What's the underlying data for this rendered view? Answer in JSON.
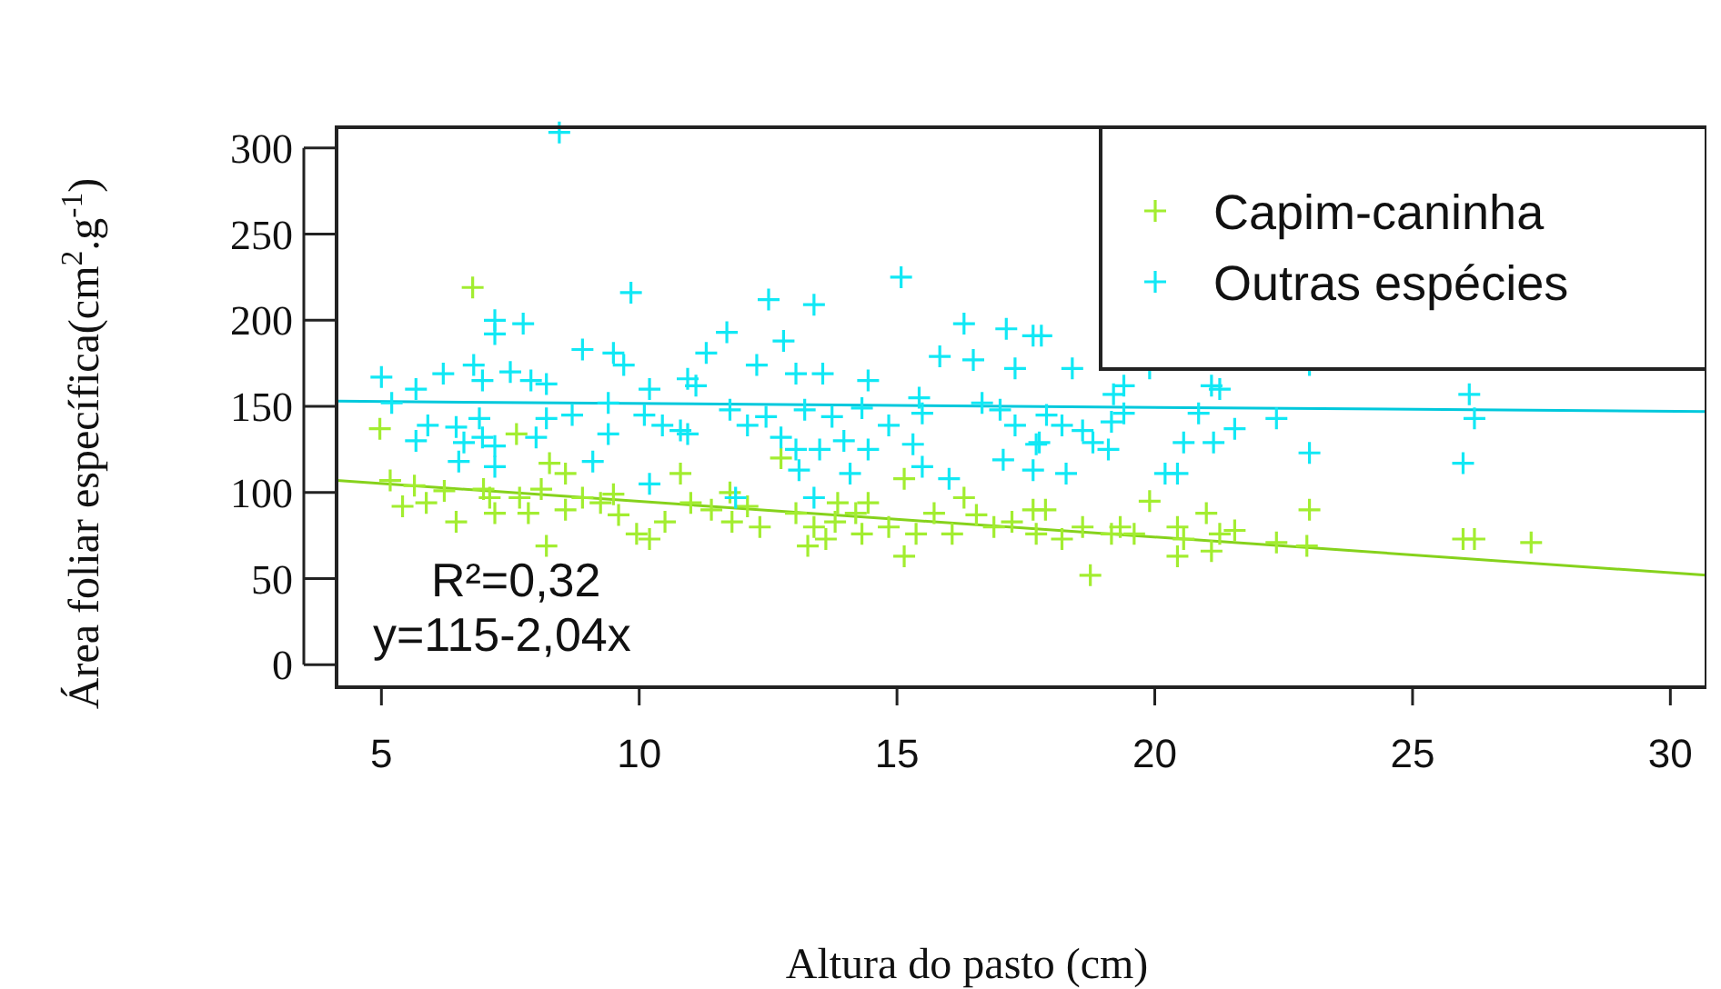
{
  "chart_data": {
    "type": "scatter",
    "xlabel": "Altura do pasto (cm)",
    "ylabel": "Área foliar específica(cm$^{2}$.g$^{-1}$)",
    "xlim": [
      4.13,
      30.7
    ],
    "xticks": [
      5,
      10,
      15,
      20,
      25,
      30
    ],
    "ylim": [
      -13,
      312
    ],
    "yticks": [
      0,
      50,
      100,
      150,
      200,
      250,
      300
    ],
    "grid": false,
    "legend": "top right",
    "marker": "cross",
    "annotations": [
      "R²=0,32",
      "y=115-2,04x"
    ],
    "series": [
      {
        "name": "Capim-caninha",
        "color": "#a2ed30",
        "x": [
          6.77,
          4.97,
          7.62,
          8.26,
          5.17,
          5.64,
          6.22,
          5.41,
          5.87,
          6.98,
          7.1,
          7.2,
          6.45,
          7.68,
          7.85,
          8.1,
          8.57,
          8.57,
          8.9,
          9.25,
          9.5,
          9.6,
          8.2,
          9.95,
          10.2,
          10.5,
          10.8,
          11.0,
          12.75,
          15.14,
          11.4,
          11.76,
          12.1,
          12.34,
          11.8,
          13.04,
          13.39,
          13.62,
          13.8,
          14.2,
          14.32,
          14.44,
          13.27,
          14.84,
          15.14,
          15.37,
          15.72,
          16.07,
          16.3,
          16.54,
          16.88,
          17.23,
          17.64,
          17.7,
          13.85,
          17.88,
          19.9,
          18.2,
          18.6,
          19.16,
          19.33,
          19.6,
          20.44,
          20.56,
          21.0,
          21.1,
          21.26,
          21.55,
          22.36,
          23.0,
          22.95,
          18.75,
          20.44,
          25.98,
          26.2,
          27.3
        ],
        "values": [
          219,
          137,
          134,
          117,
          107,
          104,
          101,
          92,
          94,
          102,
          97,
          88,
          83,
          97,
          88,
          102,
          111,
          90,
          97,
          94,
          99,
          87,
          69,
          76,
          73,
          83,
          111,
          94,
          120,
          108,
          90,
          100,
          92,
          80,
          83,
          88,
          80,
          73,
          83,
          88,
          76,
          94,
          69,
          80,
          63,
          76,
          88,
          76,
          97,
          87,
          80,
          83,
          90,
          76,
          94,
          90,
          95,
          73,
          80,
          76,
          80,
          76,
          80,
          73,
          88,
          66,
          76,
          78,
          71,
          90,
          69,
          52,
          63,
          73,
          73,
          71
        ]
      },
      {
        "name": "Outras espécies",
        "color": "#11e8f5",
        "x": [
          8.45,
          9.84,
          7.2,
          7.75,
          7.2,
          5.0,
          5.67,
          6.2,
          6.79,
          6.96,
          7.5,
          7.9,
          8.2,
          8.9,
          9.5,
          9.7,
          10.2,
          11.1,
          5.2,
          5.9,
          5.67,
          6.45,
          6.6,
          6.96,
          7.2,
          6.5,
          6.9,
          8.2,
          8.0,
          8.7,
          9.4,
          9.4,
          9.1,
          10.1,
          10.45,
          10.8,
          10.2,
          7.2,
          15.08,
          12.51,
          13.39,
          11.7,
          12.8,
          11.3,
          12.28,
          13.04,
          13.56,
          14.44,
          16.3,
          17.12,
          17.64,
          15.83,
          16.48,
          17.29,
          10.94,
          11.76,
          12.46,
          13.21,
          13.74,
          14.32,
          12.1,
          12.75,
          13.04,
          13.5,
          13.97,
          14.44,
          14.84,
          15.43,
          15.49,
          15.31,
          15.49,
          14.09,
          13.1,
          16.01,
          16.65,
          17.0,
          17.29,
          17.06,
          17.7,
          17.64,
          11.87,
          13.39,
          10.94,
          17.8,
          18.4,
          19.4,
          19.9,
          19.2,
          21.1,
          21.26,
          17.9,
          18.2,
          18.6,
          18.8,
          19.16,
          19.1,
          19.4,
          20.85,
          21.55,
          22.36,
          20.56,
          21.14,
          20.2,
          20.44,
          18.28,
          23.0,
          23.0,
          17.76,
          26.1,
          26.2,
          25.98
        ],
        "values": [
          309,
          216,
          200,
          198,
          192,
          167,
          160,
          169,
          174,
          165,
          170,
          165,
          163,
          183,
          181,
          174,
          160,
          162,
          152,
          139,
          130,
          138,
          129,
          132,
          127,
          118,
          143,
          143,
          132,
          145,
          152,
          134,
          118,
          145,
          139,
          136,
          105,
          115,
          225,
          212,
          209,
          193,
          188,
          181,
          174,
          169,
          169,
          165,
          198,
          195,
          191,
          179,
          177,
          172,
          166,
          148,
          144,
          148,
          144,
          149,
          139,
          132,
          125,
          125,
          130,
          125,
          139,
          155,
          146,
          128,
          115,
          111,
          113,
          108,
          152,
          148,
          139,
          119,
          128,
          113,
          97,
          97,
          134,
          191,
          172,
          162,
          172,
          157,
          162,
          160,
          145,
          139,
          136,
          129,
          141,
          125,
          146,
          146,
          137,
          143,
          129,
          129,
          111,
          111,
          111,
          123,
          174,
          129,
          157,
          143,
          117
        ]
      },
      {
        "type": "line",
        "color": "#86d21c",
        "marker": "none",
        "x": [
          4.13,
          30.7
        ],
        "values": [
          107,
          52
        ]
      },
      {
        "type": "line",
        "color": "#00c8dc",
        "marker": "none",
        "x": [
          4.13,
          30.7
        ],
        "values": [
          153,
          147
        ]
      }
    ]
  }
}
